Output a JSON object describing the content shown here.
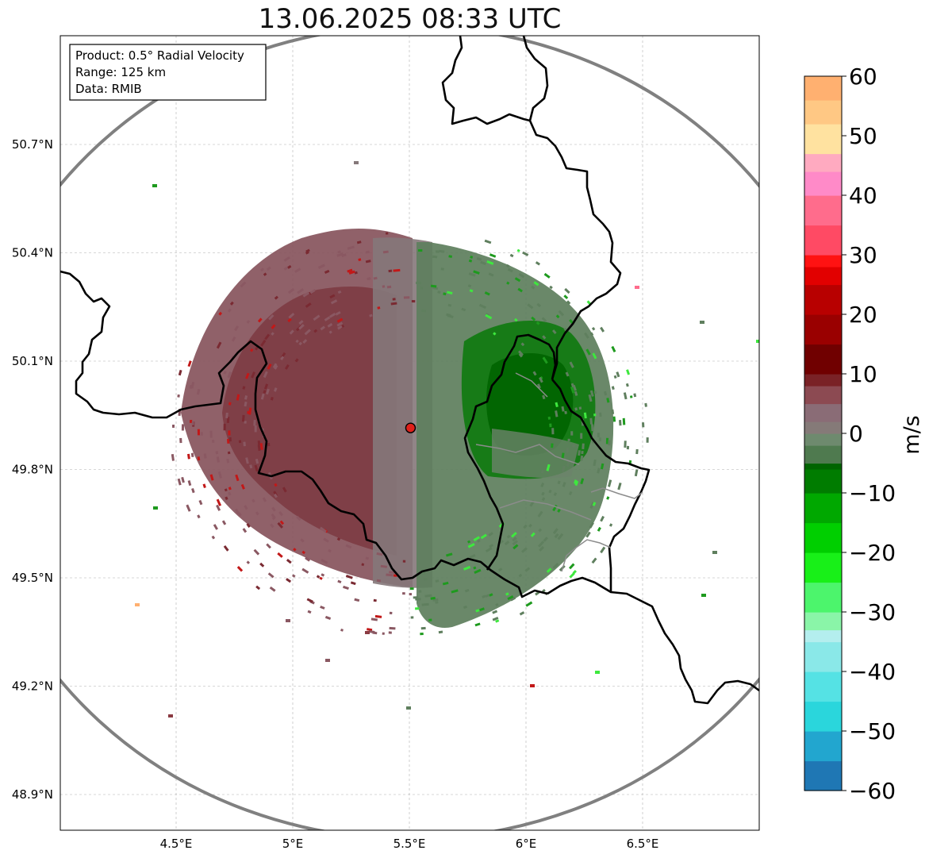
{
  "title": "13.06.2025 08:33 UTC",
  "info_box": {
    "lines": [
      "Product: 0.5° Radial Velocity",
      "Range: 125 km",
      "Data: RMIB"
    ]
  },
  "map": {
    "lon_range": [
      4.0,
      7.0
    ],
    "lat_range": [
      48.8,
      51.0
    ],
    "lon_ticks": [
      {
        "v": 4.5,
        "label": "4.5°E"
      },
      {
        "v": 5.0,
        "label": "5°E"
      },
      {
        "v": 5.5,
        "label": "5.5°E"
      },
      {
        "v": 6.0,
        "label": "6°E"
      },
      {
        "v": 6.5,
        "label": "6.5°E"
      }
    ],
    "lat_ticks": [
      {
        "v": 48.9,
        "label": "48.9°N"
      },
      {
        "v": 49.2,
        "label": "49.2°N"
      },
      {
        "v": 49.5,
        "label": "49.5°N"
      },
      {
        "v": 49.8,
        "label": "49.8°N"
      },
      {
        "v": 50.1,
        "label": "50.1°N"
      },
      {
        "v": 50.4,
        "label": "50.4°N"
      },
      {
        "v": 50.7,
        "label": "50.7°N"
      }
    ],
    "radar_site": {
      "lon": 5.505,
      "lat": 49.915,
      "color": "#e0201a"
    },
    "range_ring_color": "#808080"
  },
  "colorbar": {
    "label": "m/s",
    "vmin": -60,
    "vmax": 60,
    "ticks": [
      60,
      50,
      40,
      30,
      20,
      10,
      0,
      -10,
      -20,
      -30,
      -40,
      -50,
      -60
    ],
    "tick_labels": [
      "60",
      "50",
      "40",
      "30",
      "20",
      "10",
      "0",
      "−10",
      "−20",
      "−30",
      "−40",
      "−50",
      "−60"
    ],
    "stops": [
      {
        "v": -60,
        "c": "#1f77b4"
      },
      {
        "v": -55,
        "c": "#22a6cf"
      },
      {
        "v": -50,
        "c": "#2ad6dc"
      },
      {
        "v": -45,
        "c": "#55e2e4"
      },
      {
        "v": -40,
        "c": "#8ae8e8"
      },
      {
        "v": -35,
        "c": "#b4eeee"
      },
      {
        "v": -33,
        "c": "#8af5a8"
      },
      {
        "v": -30,
        "c": "#4cf56c"
      },
      {
        "v": -25,
        "c": "#18f018"
      },
      {
        "v": -20,
        "c": "#00cf00"
      },
      {
        "v": -15,
        "c": "#00a800"
      },
      {
        "v": -10,
        "c": "#007c00"
      },
      {
        "v": -6,
        "c": "#006400"
      },
      {
        "v": -5,
        "c": "#4f7a4f"
      },
      {
        "v": -2,
        "c": "#6e8a6e"
      },
      {
        "v": 0,
        "c": "#857a78"
      },
      {
        "v": 2,
        "c": "#8a6c76"
      },
      {
        "v": 5,
        "c": "#8c4a52"
      },
      {
        "v": 8,
        "c": "#7a2226"
      },
      {
        "v": 10,
        "c": "#700000"
      },
      {
        "v": 15,
        "c": "#9a0000"
      },
      {
        "v": 20,
        "c": "#b80000"
      },
      {
        "v": 25,
        "c": "#e20000"
      },
      {
        "v": 28,
        "c": "#ff1212"
      },
      {
        "v": 30,
        "c": "#ff4a64"
      },
      {
        "v": 35,
        "c": "#ff6c8c"
      },
      {
        "v": 40,
        "c": "#ff8ac8"
      },
      {
        "v": 44,
        "c": "#ffaac0"
      },
      {
        "v": 47,
        "c": "#ffe2a0"
      },
      {
        "v": 52,
        "c": "#ffc884"
      },
      {
        "v": 56,
        "c": "#ffb070"
      },
      {
        "v": 60,
        "c": "#ff9858"
      }
    ]
  },
  "colors": {
    "border": "#000000",
    "subdivision": "#888888",
    "grid": "#b0b0b0",
    "approaching_green": "#2e8b2e",
    "receding_red": "#8a3a42"
  }
}
